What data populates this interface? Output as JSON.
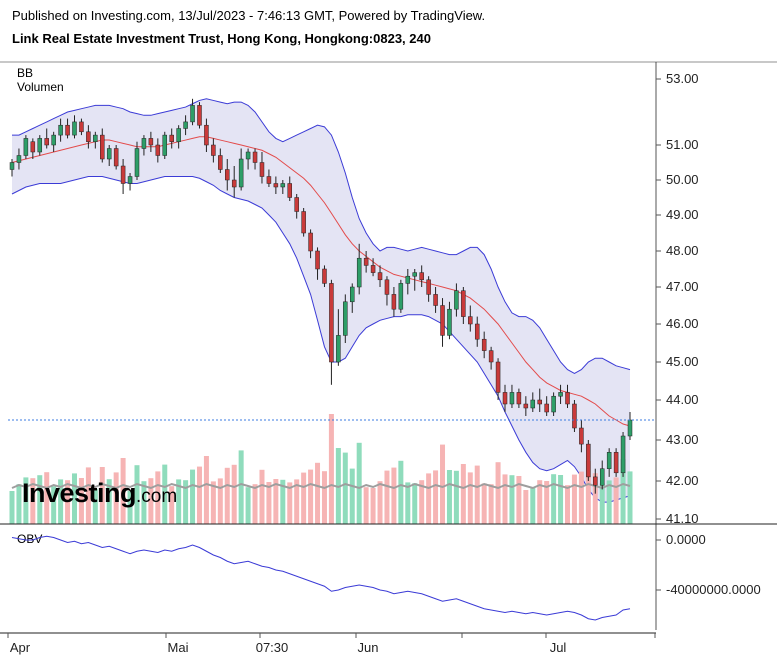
{
  "header": {
    "published": "Published on Investing.com, 13/Jul/2023 - 7:46:13 GMT, Powered by TradingView.",
    "instrument": "Link Real Estate Investment Trust, Hong Kong, Hongkong:0823, 240"
  },
  "indicators": {
    "bb": "BB",
    "volume": "Volumen",
    "obv": "OBV"
  },
  "logo": {
    "main": "Investing",
    "suffix": ".com"
  },
  "colors": {
    "up": "#2e9e68",
    "down": "#c93a3a",
    "band_fill": "#e4e4f4",
    "band_line": "#3b3bd6",
    "mid_line": "#e34b4b",
    "vol_up": "#8fdcbc",
    "vol_down": "#f6b4b4",
    "vol_ma": "#9e9e9e",
    "obv_line": "#3b3bd6",
    "price_line": "#3b7be0"
  },
  "chart_data": [
    {
      "type": "candlestick",
      "title": "Link Real Estate Investment Trust, Hong Kong, Hongkong:0823, 240",
      "y_axis_ticks": [
        "53.00",
        "51.00",
        "50.00",
        "49.00",
        "48.00",
        "47.00",
        "46.00",
        "45.00",
        "44.00",
        "43.00",
        "42.00",
        "41.10"
      ],
      "y_range": [
        41.1,
        53.6
      ],
      "x_axis_labels": [
        "Apr",
        "Mai",
        "07:30",
        "Jun",
        "Jul"
      ],
      "last_price": 43.5,
      "series": [
        {
          "name": "BB",
          "description": "Bollinger Bands (upper, basis, lower) over price"
        },
        {
          "name": "Volumen",
          "description": "Volume bars with moving average"
        }
      ],
      "ohlc": [
        [
          50.3,
          50.6,
          50.1,
          50.5
        ],
        [
          50.5,
          50.9,
          50.3,
          50.7
        ],
        [
          50.7,
          51.3,
          50.6,
          51.2
        ],
        [
          51.1,
          51.2,
          50.6,
          50.8
        ],
        [
          50.8,
          51.3,
          50.7,
          51.2
        ],
        [
          51.2,
          51.5,
          50.9,
          51.0
        ],
        [
          51.0,
          51.4,
          50.8,
          51.3
        ],
        [
          51.3,
          51.8,
          51.1,
          51.6
        ],
        [
          51.6,
          51.8,
          51.2,
          51.3
        ],
        [
          51.3,
          51.9,
          51.2,
          51.7
        ],
        [
          51.7,
          51.8,
          51.3,
          51.4
        ],
        [
          51.4,
          51.6,
          50.9,
          51.1
        ],
        [
          51.1,
          51.4,
          50.9,
          51.3
        ],
        [
          51.3,
          51.5,
          50.5,
          50.6
        ],
        [
          50.6,
          51.0,
          50.4,
          50.9
        ],
        [
          50.9,
          51.0,
          50.3,
          50.4
        ],
        [
          50.4,
          50.6,
          49.6,
          49.9
        ],
        [
          49.9,
          50.2,
          49.7,
          50.1
        ],
        [
          50.1,
          51.1,
          50.0,
          50.9
        ],
        [
          50.9,
          51.3,
          50.7,
          51.2
        ],
        [
          51.2,
          51.4,
          50.8,
          51.0
        ],
        [
          51.0,
          51.2,
          50.5,
          50.7
        ],
        [
          50.7,
          51.4,
          50.6,
          51.3
        ],
        [
          51.3,
          51.5,
          50.9,
          51.1
        ],
        [
          51.1,
          51.6,
          50.9,
          51.5
        ],
        [
          51.5,
          51.9,
          51.3,
          51.7
        ],
        [
          51.7,
          52.4,
          51.6,
          52.2
        ],
        [
          52.2,
          52.3,
          51.5,
          51.6
        ],
        [
          51.6,
          51.8,
          50.8,
          51.0
        ],
        [
          51.0,
          51.2,
          50.5,
          50.7
        ],
        [
          50.7,
          50.9,
          50.2,
          50.3
        ],
        [
          50.3,
          50.6,
          49.7,
          50.0
        ],
        [
          50.0,
          50.4,
          49.5,
          49.8
        ],
        [
          49.8,
          50.9,
          49.7,
          50.6
        ],
        [
          50.6,
          50.9,
          50.3,
          50.8
        ],
        [
          50.8,
          50.9,
          50.3,
          50.5
        ],
        [
          50.5,
          50.8,
          49.9,
          50.1
        ],
        [
          50.1,
          50.3,
          49.8,
          49.9
        ],
        [
          49.9,
          50.1,
          49.6,
          49.8
        ],
        [
          49.8,
          50.0,
          49.6,
          49.9
        ],
        [
          49.9,
          50.1,
          49.4,
          49.5
        ],
        [
          49.5,
          49.6,
          48.9,
          49.1
        ],
        [
          49.1,
          49.2,
          48.4,
          48.5
        ],
        [
          48.5,
          48.6,
          47.8,
          48.0
        ],
        [
          48.0,
          48.1,
          47.2,
          47.5
        ],
        [
          47.5,
          47.6,
          47.0,
          47.1
        ],
        [
          47.1,
          47.2,
          44.4,
          45.0
        ],
        [
          45.0,
          46.4,
          44.9,
          45.7
        ],
        [
          45.7,
          46.8,
          45.5,
          46.6
        ],
        [
          46.6,
          47.1,
          46.3,
          47.0
        ],
        [
          47.0,
          48.2,
          46.8,
          47.8
        ],
        [
          47.8,
          48.0,
          47.4,
          47.6
        ],
        [
          47.6,
          47.8,
          47.3,
          47.4
        ],
        [
          47.4,
          47.6,
          47.0,
          47.2
        ],
        [
          47.2,
          47.3,
          46.5,
          46.8
        ],
        [
          46.8,
          47.0,
          46.2,
          46.4
        ],
        [
          46.4,
          47.2,
          46.3,
          47.1
        ],
        [
          47.1,
          47.5,
          46.8,
          47.3
        ],
        [
          47.3,
          47.5,
          46.9,
          47.4
        ],
        [
          47.4,
          47.6,
          47.0,
          47.2
        ],
        [
          47.2,
          47.3,
          46.6,
          46.8
        ],
        [
          46.8,
          47.0,
          46.3,
          46.5
        ],
        [
          46.5,
          46.7,
          45.4,
          45.7
        ],
        [
          45.7,
          46.6,
          45.6,
          46.4
        ],
        [
          46.4,
          47.1,
          46.2,
          46.9
        ],
        [
          46.9,
          47.0,
          46.0,
          46.2
        ],
        [
          46.2,
          46.5,
          45.8,
          46.0
        ],
        [
          46.0,
          46.2,
          45.4,
          45.6
        ],
        [
          45.6,
          45.8,
          45.1,
          45.3
        ],
        [
          45.3,
          45.4,
          44.8,
          45.0
        ],
        [
          45.0,
          45.1,
          44.0,
          44.2
        ],
        [
          44.2,
          44.4,
          43.7,
          43.9
        ],
        [
          43.9,
          44.4,
          43.8,
          44.2
        ],
        [
          44.2,
          44.3,
          43.8,
          43.9
        ],
        [
          43.9,
          44.1,
          43.6,
          43.8
        ],
        [
          43.8,
          44.2,
          43.7,
          44.0
        ],
        [
          44.0,
          44.3,
          43.7,
          43.9
        ],
        [
          43.9,
          44.1,
          43.6,
          43.7
        ],
        [
          43.7,
          44.2,
          43.6,
          44.1
        ],
        [
          44.1,
          44.4,
          43.9,
          44.2
        ],
        [
          44.2,
          44.4,
          43.8,
          43.9
        ],
        [
          43.9,
          44.0,
          43.2,
          43.3
        ],
        [
          43.3,
          43.5,
          42.7,
          42.9
        ],
        [
          42.9,
          43.0,
          42.0,
          42.1
        ],
        [
          42.1,
          42.3,
          41.7,
          41.9
        ],
        [
          41.9,
          42.5,
          41.8,
          42.3
        ],
        [
          42.3,
          42.8,
          42.1,
          42.7
        ],
        [
          42.7,
          42.8,
          42.1,
          42.2
        ],
        [
          42.2,
          43.2,
          42.1,
          43.1
        ],
        [
          43.1,
          43.7,
          43.0,
          43.5
        ]
      ],
      "bb_upper": [
        51.3,
        51.3,
        51.4,
        51.5,
        51.6,
        51.7,
        51.8,
        51.9,
        52.0,
        52.05,
        52.1,
        52.15,
        52.2,
        52.2,
        52.2,
        52.15,
        52.1,
        52.0,
        51.95,
        51.9,
        51.9,
        51.95,
        52.0,
        52.05,
        52.1,
        52.15,
        52.25,
        52.35,
        52.4,
        52.35,
        52.3,
        52.25,
        52.3,
        52.3,
        52.2,
        52.0,
        51.7,
        51.4,
        51.2,
        51.1,
        51.2,
        51.3,
        51.4,
        51.5,
        51.6,
        51.55,
        51.3,
        50.8,
        50.2,
        49.5,
        48.9,
        48.5,
        48.2,
        48.0,
        48.1,
        48.1,
        48.05,
        48.0,
        48.05,
        48.1,
        48.05,
        48.0,
        47.95,
        47.9,
        47.9,
        48.0,
        48.1,
        48.1,
        47.9,
        47.5,
        47.0,
        46.6,
        46.3,
        46.2,
        46.2,
        46.1,
        45.9,
        45.6,
        45.3,
        45.0,
        44.8,
        44.7,
        44.8,
        45.0,
        45.1,
        45.1,
        45.0,
        44.9,
        44.85,
        44.8
      ],
      "bb_mid": [
        50.5,
        50.55,
        50.6,
        50.65,
        50.7,
        50.75,
        50.8,
        50.85,
        50.9,
        50.95,
        51.0,
        51.05,
        51.1,
        51.15,
        51.15,
        51.1,
        51.05,
        51.0,
        50.95,
        50.95,
        50.95,
        50.95,
        51.0,
        51.05,
        51.1,
        51.15,
        51.2,
        51.25,
        51.25,
        51.2,
        51.15,
        51.1,
        51.05,
        51.0,
        50.95,
        50.9,
        50.85,
        50.75,
        50.65,
        50.5,
        50.35,
        50.2,
        50.05,
        49.85,
        49.6,
        49.35,
        49.05,
        48.75,
        48.45,
        48.2,
        48.0,
        47.85,
        47.7,
        47.55,
        47.45,
        47.35,
        47.3,
        47.25,
        47.2,
        47.15,
        47.1,
        47.05,
        47.0,
        46.95,
        46.9,
        46.8,
        46.7,
        46.55,
        46.4,
        46.2,
        46.0,
        45.75,
        45.5,
        45.25,
        45.0,
        44.8,
        44.6,
        44.45,
        44.35,
        44.25,
        44.2,
        44.15,
        44.1,
        44.0,
        43.9,
        43.75,
        43.6,
        43.5,
        43.4,
        43.35
      ],
      "bb_lower": [
        49.6,
        49.7,
        49.8,
        49.85,
        49.9,
        49.9,
        49.9,
        49.9,
        49.95,
        50.0,
        50.05,
        50.1,
        50.1,
        50.1,
        50.05,
        50.0,
        49.95,
        49.9,
        49.9,
        49.95,
        50.0,
        50.05,
        50.1,
        50.1,
        50.1,
        50.1,
        50.1,
        50.05,
        49.95,
        49.85,
        49.7,
        49.6,
        49.5,
        49.45,
        49.4,
        49.3,
        49.2,
        49.0,
        48.8,
        48.5,
        48.2,
        47.8,
        47.3,
        46.8,
        46.1,
        45.4,
        45.0,
        45.0,
        45.1,
        45.4,
        45.7,
        45.9,
        46.0,
        46.1,
        46.15,
        46.2,
        46.2,
        46.25,
        46.25,
        46.25,
        46.2,
        46.1,
        46.0,
        45.8,
        45.6,
        45.4,
        45.2,
        45.0,
        44.7,
        44.4,
        44.1,
        43.7,
        43.35,
        43.0,
        42.7,
        42.45,
        42.3,
        42.25,
        42.3,
        42.4,
        42.5,
        42.35,
        42.1,
        41.8,
        41.6,
        41.5,
        41.5,
        41.55,
        41.6,
        41.65
      ]
    },
    {
      "type": "line",
      "series": [
        {
          "name": "OBV"
        }
      ],
      "y_axis_ticks": [
        "0.0000",
        "-40000000.0000"
      ],
      "y_range": [
        -70000000,
        7000000
      ],
      "values": [
        2,
        1,
        0,
        0,
        2,
        3,
        2,
        0,
        -2,
        -1,
        -3,
        -2,
        -4,
        -6,
        -5,
        -7,
        -9,
        -11,
        -9,
        -8,
        -9,
        -10,
        -8,
        -9,
        -7,
        -6,
        -4,
        -6,
        -9,
        -12,
        -14,
        -17,
        -19,
        -18,
        -17,
        -19,
        -21,
        -22,
        -24,
        -25,
        -27,
        -29,
        -31,
        -33,
        -35,
        -37,
        -41,
        -40,
        -38,
        -37,
        -36,
        -37,
        -38,
        -40,
        -41,
        -43,
        -42,
        -41,
        -42,
        -43,
        -45,
        -47,
        -49,
        -48,
        -47,
        -49,
        -51,
        -53,
        -55,
        -56,
        -57,
        -58,
        -57,
        -58,
        -59,
        -58,
        -59,
        -60,
        -59,
        -58,
        -57,
        -58,
        -60,
        -63,
        -64,
        -62,
        -61,
        -60,
        -56,
        -55
      ],
      "values_unit": "millions"
    }
  ]
}
